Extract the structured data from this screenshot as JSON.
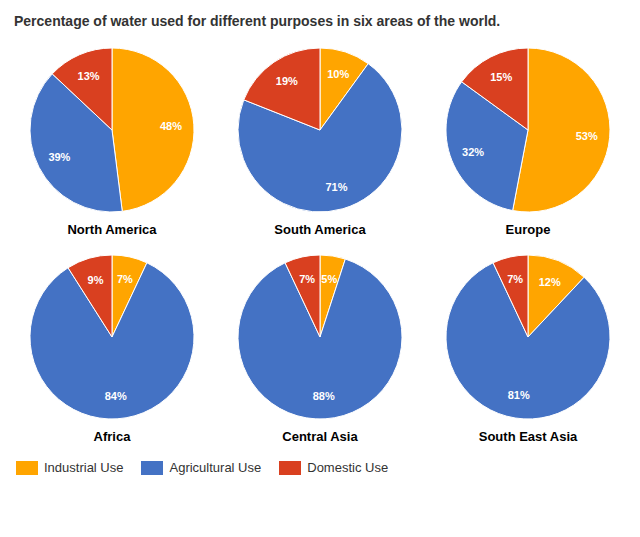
{
  "title": "Percentage of water used for different purposes in six areas of the world.",
  "chart_data": [
    {
      "type": "pie",
      "title": "North America",
      "categories": [
        "Industrial Use",
        "Agricultural Use",
        "Domestic Use"
      ],
      "values": [
        48,
        39,
        13
      ],
      "value_labels": [
        "48%",
        "39%",
        "13%"
      ],
      "colors": [
        "#FFA500",
        "#4472C4",
        "#D94020"
      ],
      "data_labels": true,
      "legend": "lower left"
    },
    {
      "type": "pie",
      "title": "South America",
      "categories": [
        "Industrial Use",
        "Agricultural Use",
        "Domestic Use"
      ],
      "values": [
        10,
        71,
        19
      ],
      "value_labels": [
        "10%",
        "71%",
        "19%"
      ],
      "colors": [
        "#FFA500",
        "#4472C4",
        "#D94020"
      ],
      "data_labels": true,
      "legend": "lower left"
    },
    {
      "type": "pie",
      "title": "Europe",
      "categories": [
        "Industrial Use",
        "Agricultural Use",
        "Domestic Use"
      ],
      "values": [
        53,
        32,
        15
      ],
      "value_labels": [
        "53%",
        "32%",
        "15%"
      ],
      "colors": [
        "#FFA500",
        "#4472C4",
        "#D94020"
      ],
      "data_labels": true,
      "legend": "lower left"
    },
    {
      "type": "pie",
      "title": "Africa",
      "categories": [
        "Industrial Use",
        "Agricultural Use",
        "Domestic Use"
      ],
      "values": [
        7,
        84,
        9
      ],
      "value_labels": [
        "7%",
        "84%",
        "9%"
      ],
      "colors": [
        "#FFA500",
        "#4472C4",
        "#D94020"
      ],
      "data_labels": true,
      "legend": "lower left"
    },
    {
      "type": "pie",
      "title": "Central Asia",
      "categories": [
        "Industrial Use",
        "Agricultural Use",
        "Domestic Use"
      ],
      "values": [
        5,
        88,
        7
      ],
      "value_labels": [
        "5%",
        "88%",
        "7%"
      ],
      "colors": [
        "#FFA500",
        "#4472C4",
        "#D94020"
      ],
      "data_labels": true,
      "legend": "lower left"
    },
    {
      "type": "pie",
      "title": "South East Asia",
      "categories": [
        "Industrial Use",
        "Agricultural Use",
        "Domestic Use"
      ],
      "values": [
        12,
        81,
        7
      ],
      "value_labels": [
        "12%",
        "81%",
        "7%"
      ],
      "colors": [
        "#FFA500",
        "#4472C4",
        "#D94020"
      ],
      "data_labels": true,
      "legend": "lower left"
    }
  ]
}
